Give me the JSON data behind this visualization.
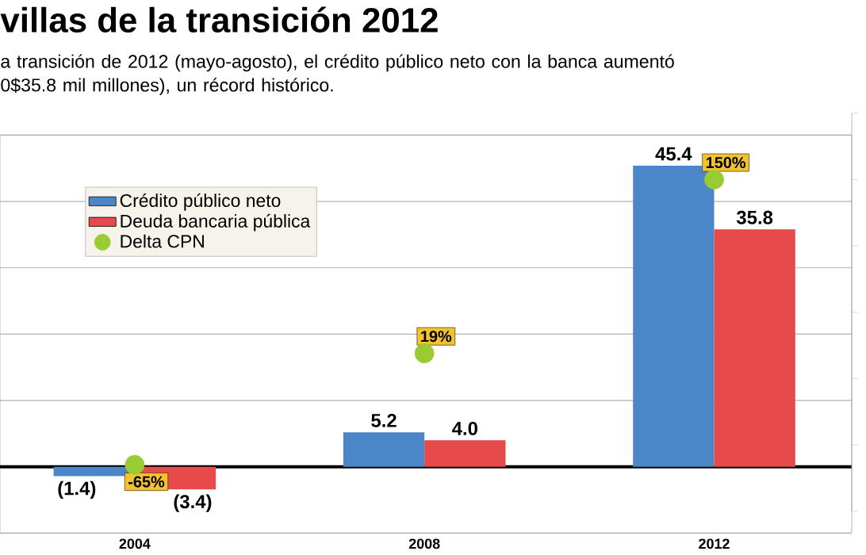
{
  "chart_data": {
    "type": "bar",
    "title": "villas de la transición 2012",
    "subtitle": "a transición de 2012 (mayo-agosto), el crédito público neto con la banca aumentó 0$35.8 mil millones), un récord histórico.",
    "categories": [
      "2004",
      "2008",
      "2012"
    ],
    "series": [
      {
        "name": "Crédito público neto",
        "color": "#4a86c8",
        "values": [
          -1.4,
          5.2,
          45.4
        ],
        "value_labels": [
          "(1.4)",
          "5.2",
          "45.4"
        ]
      },
      {
        "name": "Deuda bancaria pública",
        "color": "#e64a4a",
        "values": [
          -3.4,
          4.0,
          35.8
        ],
        "value_labels": [
          "(3.4)",
          "4.0",
          "35.8"
        ]
      },
      {
        "name": "Delta CPN",
        "type": "scatter",
        "axis": "y2",
        "color": "#99cc33",
        "values": [
          -65,
          19,
          150
        ],
        "value_labels": [
          "-65%",
          "19%",
          "150%"
        ]
      }
    ],
    "ylim": [
      -10,
      50
    ],
    "yticks": [
      {
        "value": -10,
        "label": null
      },
      {
        "value": 0,
        "label": null
      },
      {
        "value": 10,
        "label": null
      },
      {
        "value": 20,
        "label": null
      },
      {
        "value": 30,
        "label": null
      },
      {
        "value": 40,
        "label": null
      },
      {
        "value": 50,
        "label": null
      }
    ],
    "y2lim": [
      -100,
      200
    ],
    "y2ticks": [
      {
        "value": -100,
        "label": null
      },
      {
        "value": -50,
        "label": null
      },
      {
        "value": 0,
        "label": null
      },
      {
        "value": 50,
        "label": null
      },
      {
        "value": 100,
        "label": null
      },
      {
        "value": 150,
        "label": null
      },
      {
        "value": 200,
        "label": null
      }
    ],
    "grid": "y",
    "legend": "top left",
    "tick_labels": "x",
    "ref_lines": [
      {
        "axis": "y",
        "value": 0,
        "color": "#000000"
      }
    ]
  }
}
